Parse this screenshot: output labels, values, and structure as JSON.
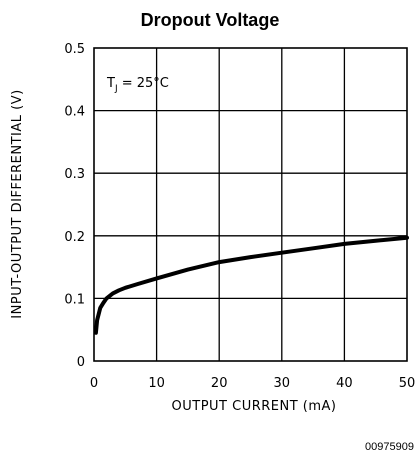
{
  "chart_data": {
    "type": "line",
    "title": "Dropout Voltage",
    "xlabel": "OUTPUT CURRENT (mA)",
    "ylabel": "INPUT-OUTPUT DIFFERENTIAL (V)",
    "xlim": [
      0,
      50
    ],
    "ylim": [
      0,
      0.5
    ],
    "x_ticks": [
      "0",
      "10",
      "20",
      "30",
      "40",
      "50"
    ],
    "y_ticks": [
      "0",
      "0.1",
      "0.2",
      "0.3",
      "0.4",
      "0.5"
    ],
    "grid": true,
    "annotation": {
      "t": "T",
      "sub": "J",
      "rest": " = 25°C"
    },
    "footer_code": "00975909",
    "series": [
      {
        "x": [
          0.3,
          0.5,
          1,
          1.5,
          2,
          3,
          4,
          5,
          7,
          10,
          15,
          20,
          25,
          30,
          35,
          40,
          45,
          50
        ],
        "values": [
          0.045,
          0.065,
          0.085,
          0.093,
          0.1,
          0.108,
          0.113,
          0.117,
          0.123,
          0.132,
          0.146,
          0.158,
          0.166,
          0.173,
          0.18,
          0.187,
          0.192,
          0.197
        ]
      }
    ]
  }
}
